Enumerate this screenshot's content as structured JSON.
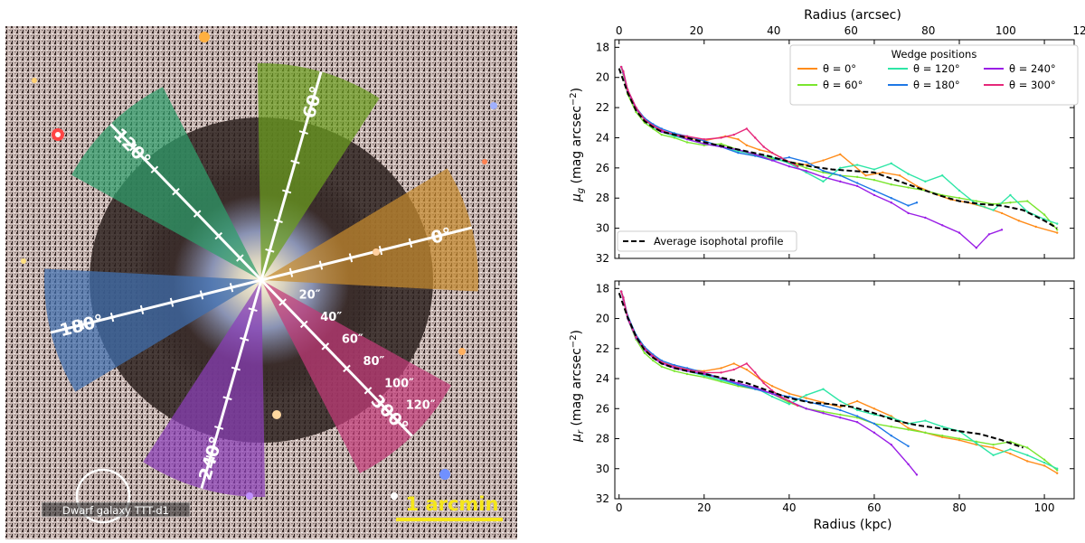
{
  "image_panel": {
    "wedges": [
      {
        "label": "0°",
        "angle": 0,
        "color": "#c68a2e"
      },
      {
        "label": "60°",
        "angle": 60,
        "color": "#6b9e1e"
      },
      {
        "label": "120°",
        "angle": 120,
        "color": "#2e9e6b"
      },
      {
        "label": "180°",
        "angle": 180,
        "color": "#3e6fb0"
      },
      {
        "label": "240°",
        "angle": 240,
        "color": "#8a3fb8"
      },
      {
        "label": "300°",
        "angle": 300,
        "color": "#c23a78"
      }
    ],
    "radius_ticks": [
      "20″",
      "40″",
      "60″",
      "80″",
      "100″",
      "120″"
    ],
    "dwarf_label": "Dwarf galaxy TTT-d1",
    "scale_bar_label": "1 arcmin"
  },
  "chart_data": [
    {
      "type": "line",
      "title": "",
      "xlabel": "",
      "top_xlabel": "Radius (arcsec)",
      "ylabel": "μ_g (mag arcsec⁻²)",
      "xlim": [
        -1,
        107
      ],
      "ylim": [
        32,
        17.5
      ],
      "x_ticks": [
        0,
        20,
        40,
        60,
        80,
        100
      ],
      "top_ticks": [
        0,
        20,
        40,
        60,
        80,
        100,
        120
      ],
      "y_ticks": [
        18,
        20,
        22,
        24,
        26,
        28,
        30,
        32
      ],
      "legend_title": "Wedge positions",
      "legend_labels": [
        "θ = 0°",
        "θ = 60°",
        "θ = 120°",
        "θ = 180°",
        "θ = 240°",
        "θ = 300°"
      ],
      "avg_label": "Average isophotal profile",
      "series": [
        {
          "name": "θ = 0°",
          "color": "#ff8c1a",
          "x": [
            0.5,
            1,
            2,
            4,
            6,
            8,
            10,
            13,
            16,
            20,
            25,
            28,
            30,
            33,
            36,
            40,
            44,
            48,
            52,
            55,
            58,
            62,
            66,
            70,
            74,
            78,
            82,
            86,
            90,
            94,
            98,
            103
          ],
          "y": [
            19.3,
            19.7,
            21,
            22.1,
            22.8,
            23.2,
            23.6,
            23.8,
            24,
            24.2,
            23.9,
            24.1,
            24.5,
            24.8,
            25,
            25.6,
            25.8,
            25.5,
            25.1,
            25.8,
            26.5,
            26.3,
            26.5,
            27.2,
            27.7,
            28.1,
            28.3,
            28.6,
            29,
            29.5,
            29.9,
            30.3
          ]
        },
        {
          "name": "θ = 60°",
          "color": "#7ae62e",
          "x": [
            0.5,
            1,
            2,
            4,
            6,
            8,
            10,
            13,
            16,
            20,
            24,
            28,
            32,
            36,
            40,
            44,
            48,
            52,
            56,
            60,
            64,
            68,
            72,
            76,
            80,
            84,
            88,
            92,
            96,
            100,
            103
          ],
          "y": [
            19.3,
            19.8,
            21.1,
            22.3,
            23,
            23.4,
            23.8,
            24,
            24.3,
            24.5,
            24.4,
            24.8,
            25.2,
            25.4,
            25.6,
            26,
            26.3,
            26.5,
            26.6,
            26.8,
            27.1,
            27.3,
            27.5,
            27.8,
            28,
            28.2,
            28.4,
            28.3,
            28.2,
            29.1,
            30.1
          ]
        },
        {
          "name": "θ = 120°",
          "color": "#2ee6a6",
          "x": [
            0.5,
            1,
            2,
            4,
            6,
            8,
            10,
            13,
            16,
            20,
            24,
            28,
            32,
            36,
            40,
            44,
            48,
            52,
            56,
            60,
            64,
            68,
            72,
            76,
            80,
            84,
            88,
            92,
            96,
            100,
            103
          ],
          "y": [
            19.3,
            19.7,
            20.9,
            22.1,
            22.8,
            23.3,
            23.6,
            23.9,
            24.1,
            24.4,
            24.6,
            24.9,
            25.1,
            25.3,
            25.7,
            26.3,
            26.9,
            26,
            25.8,
            26.1,
            25.7,
            26.4,
            26.9,
            26.5,
            27.5,
            28.4,
            28.8,
            27.8,
            28.9,
            29.4,
            29.7
          ]
        },
        {
          "name": "θ = 180°",
          "color": "#1e78e6",
          "x": [
            0.5,
            1,
            2,
            4,
            6,
            8,
            10,
            13,
            16,
            20,
            24,
            28,
            32,
            36,
            40,
            44,
            48,
            52,
            56,
            60,
            64,
            68,
            70
          ],
          "y": [
            19.3,
            19.6,
            20.8,
            22,
            22.7,
            23.1,
            23.4,
            23.7,
            23.9,
            24.2,
            24.6,
            25,
            25.2,
            25.5,
            25.3,
            25.6,
            26.2,
            26.5,
            27,
            27.5,
            28,
            28.5,
            28.3
          ]
        },
        {
          "name": "θ = 240°",
          "color": "#9a1ee6",
          "x": [
            0.5,
            1,
            2,
            4,
            6,
            8,
            10,
            13,
            16,
            20,
            24,
            28,
            32,
            36,
            40,
            44,
            48,
            52,
            56,
            60,
            64,
            68,
            72,
            76,
            80,
            84,
            87,
            90
          ],
          "y": [
            19.3,
            19.7,
            20.9,
            22.1,
            22.8,
            23.2,
            23.6,
            23.8,
            24.1,
            24.4,
            24.6,
            24.8,
            25.1,
            25.5,
            25.9,
            26.2,
            26.6,
            26.9,
            27.2,
            27.8,
            28.3,
            29,
            29.3,
            29.8,
            30.3,
            31.3,
            30.4,
            30.1
          ]
        },
        {
          "name": "θ = 300°",
          "color": "#e6287a",
          "x": [
            0.5,
            1,
            2,
            4,
            6,
            8,
            10,
            13,
            16,
            20,
            24,
            27,
            30,
            32,
            34,
            36,
            38,
            40,
            42
          ],
          "y": [
            19.3,
            19.6,
            20.8,
            22,
            22.8,
            23.2,
            23.5,
            23.8,
            23.9,
            24.1,
            24,
            23.8,
            23.4,
            24,
            24.6,
            25,
            25.3,
            25.6,
            25.9
          ]
        },
        {
          "name": "Average isophotal profile",
          "color": "#000000",
          "x": [
            0,
            2,
            4,
            6,
            8,
            10,
            13,
            16,
            20,
            25,
            30,
            35,
            40,
            45,
            50,
            55,
            60,
            65,
            70,
            75,
            80,
            85,
            90,
            95,
            100,
            103
          ],
          "y": [
            19.4,
            21,
            22.2,
            22.9,
            23.3,
            23.6,
            23.8,
            24,
            24.3,
            24.6,
            24.9,
            25.2,
            25.6,
            25.9,
            26.1,
            26.2,
            26.3,
            26.8,
            27.3,
            27.8,
            28.2,
            28.4,
            28.5,
            28.8,
            29.5,
            30
          ]
        }
      ]
    },
    {
      "type": "line",
      "title": "",
      "xlabel": "Radius (kpc)",
      "ylabel": "μ_r (mag arcsec⁻²)",
      "xlim": [
        -1,
        107
      ],
      "ylim": [
        32,
        17.5
      ],
      "x_ticks": [
        0,
        20,
        40,
        60,
        80,
        100
      ],
      "y_ticks": [
        18,
        20,
        22,
        24,
        26,
        28,
        30,
        32
      ],
      "series": [
        {
          "name": "θ = 0°",
          "color": "#ff8c1a",
          "x": [
            0.5,
            1,
            2,
            4,
            6,
            8,
            10,
            13,
            16,
            20,
            24,
            27,
            30,
            33,
            36,
            40,
            44,
            48,
            52,
            56,
            60,
            64,
            68,
            72,
            76,
            80,
            84,
            88,
            92,
            96,
            100,
            103
          ],
          "y": [
            18.2,
            18.7,
            20,
            21.3,
            22.1,
            22.6,
            23,
            23.2,
            23.4,
            23.5,
            23.3,
            23,
            23.4,
            24,
            24.5,
            25,
            25.3,
            25.6,
            25.9,
            25.5,
            26,
            26.5,
            27.3,
            27.6,
            27.9,
            28.1,
            28.4,
            28.6,
            29,
            29.5,
            29.8,
            30.3
          ]
        },
        {
          "name": "θ = 60°",
          "color": "#7ae62e",
          "x": [
            0.5,
            1,
            2,
            4,
            6,
            8,
            10,
            13,
            16,
            20,
            24,
            28,
            32,
            36,
            40,
            44,
            48,
            52,
            56,
            60,
            64,
            68,
            72,
            76,
            80,
            84,
            88,
            92,
            96,
            100,
            103
          ],
          "y": [
            18.2,
            18.7,
            20,
            21.4,
            22.3,
            22.8,
            23.2,
            23.5,
            23.7,
            23.9,
            24.2,
            24.5,
            24.7,
            25,
            25.6,
            26,
            26.2,
            26.4,
            26.6,
            27,
            27.2,
            27.4,
            27.6,
            27.8,
            28,
            28.2,
            28.4,
            28.2,
            28.6,
            29.4,
            30.1
          ]
        },
        {
          "name": "θ = 120°",
          "color": "#2ee6a6",
          "x": [
            0.5,
            1,
            2,
            4,
            6,
            8,
            10,
            13,
            16,
            20,
            24,
            28,
            32,
            36,
            40,
            44,
            48,
            52,
            56,
            60,
            64,
            68,
            72,
            76,
            80,
            84,
            88,
            92,
            96,
            100,
            103
          ],
          "y": [
            18.2,
            18.6,
            19.9,
            21.2,
            22,
            22.5,
            22.9,
            23.2,
            23.5,
            23.8,
            24.1,
            24.4,
            24.6,
            25.2,
            25.7,
            25.1,
            24.7,
            25.5,
            26.1,
            26.4,
            26.6,
            27,
            26.8,
            27.2,
            27.5,
            28.3,
            29.1,
            28.7,
            29.1,
            29.6,
            30
          ]
        },
        {
          "name": "θ = 180°",
          "color": "#1e78e6",
          "x": [
            0.5,
            1,
            2,
            4,
            6,
            8,
            10,
            13,
            16,
            20,
            24,
            28,
            32,
            36,
            40,
            44,
            48,
            52,
            56,
            60,
            64,
            68
          ],
          "y": [
            18.2,
            18.6,
            19.8,
            21.1,
            21.9,
            22.4,
            22.8,
            23.1,
            23.3,
            23.6,
            24,
            24.4,
            24.7,
            25,
            25.2,
            25.5,
            25.8,
            26.1,
            26.5,
            27,
            27.8,
            28.5
          ]
        },
        {
          "name": "θ = 240°",
          "color": "#9a1ee6",
          "x": [
            0.5,
            1,
            2,
            4,
            6,
            8,
            10,
            13,
            16,
            20,
            24,
            28,
            32,
            36,
            40,
            44,
            48,
            52,
            56,
            60,
            64,
            68,
            70
          ],
          "y": [
            18.2,
            18.7,
            20,
            21.3,
            22.1,
            22.6,
            23,
            23.3,
            23.5,
            23.7,
            24,
            24.3,
            24.6,
            25,
            25.5,
            26,
            26.3,
            26.6,
            26.9,
            27.6,
            28.4,
            29.7,
            30.4
          ]
        },
        {
          "name": "θ = 300°",
          "color": "#e6287a",
          "x": [
            0.5,
            1,
            2,
            4,
            6,
            8,
            10,
            13,
            16,
            20,
            24,
            27,
            30,
            32,
            34,
            36,
            38,
            40,
            42
          ],
          "y": [
            18.2,
            18.6,
            19.9,
            21.2,
            22,
            22.5,
            22.9,
            23.2,
            23.4,
            23.6,
            23.6,
            23.4,
            23,
            23.6,
            24.3,
            24.8,
            25.2,
            25.5,
            25.8
          ]
        },
        {
          "name": "Average isophotal profile",
          "color": "#000000",
          "x": [
            0,
            2,
            4,
            6,
            8,
            10,
            13,
            16,
            20,
            25,
            30,
            35,
            40,
            45,
            50,
            55,
            60,
            65,
            70,
            75,
            80,
            85,
            90,
            95
          ],
          "y": [
            18.3,
            19.9,
            21.2,
            22.1,
            22.6,
            23,
            23.3,
            23.5,
            23.7,
            24,
            24.3,
            24.8,
            25.3,
            25.6,
            25.7,
            25.9,
            26.3,
            26.8,
            27.1,
            27.3,
            27.5,
            27.7,
            28.1,
            28.6
          ]
        }
      ]
    }
  ]
}
